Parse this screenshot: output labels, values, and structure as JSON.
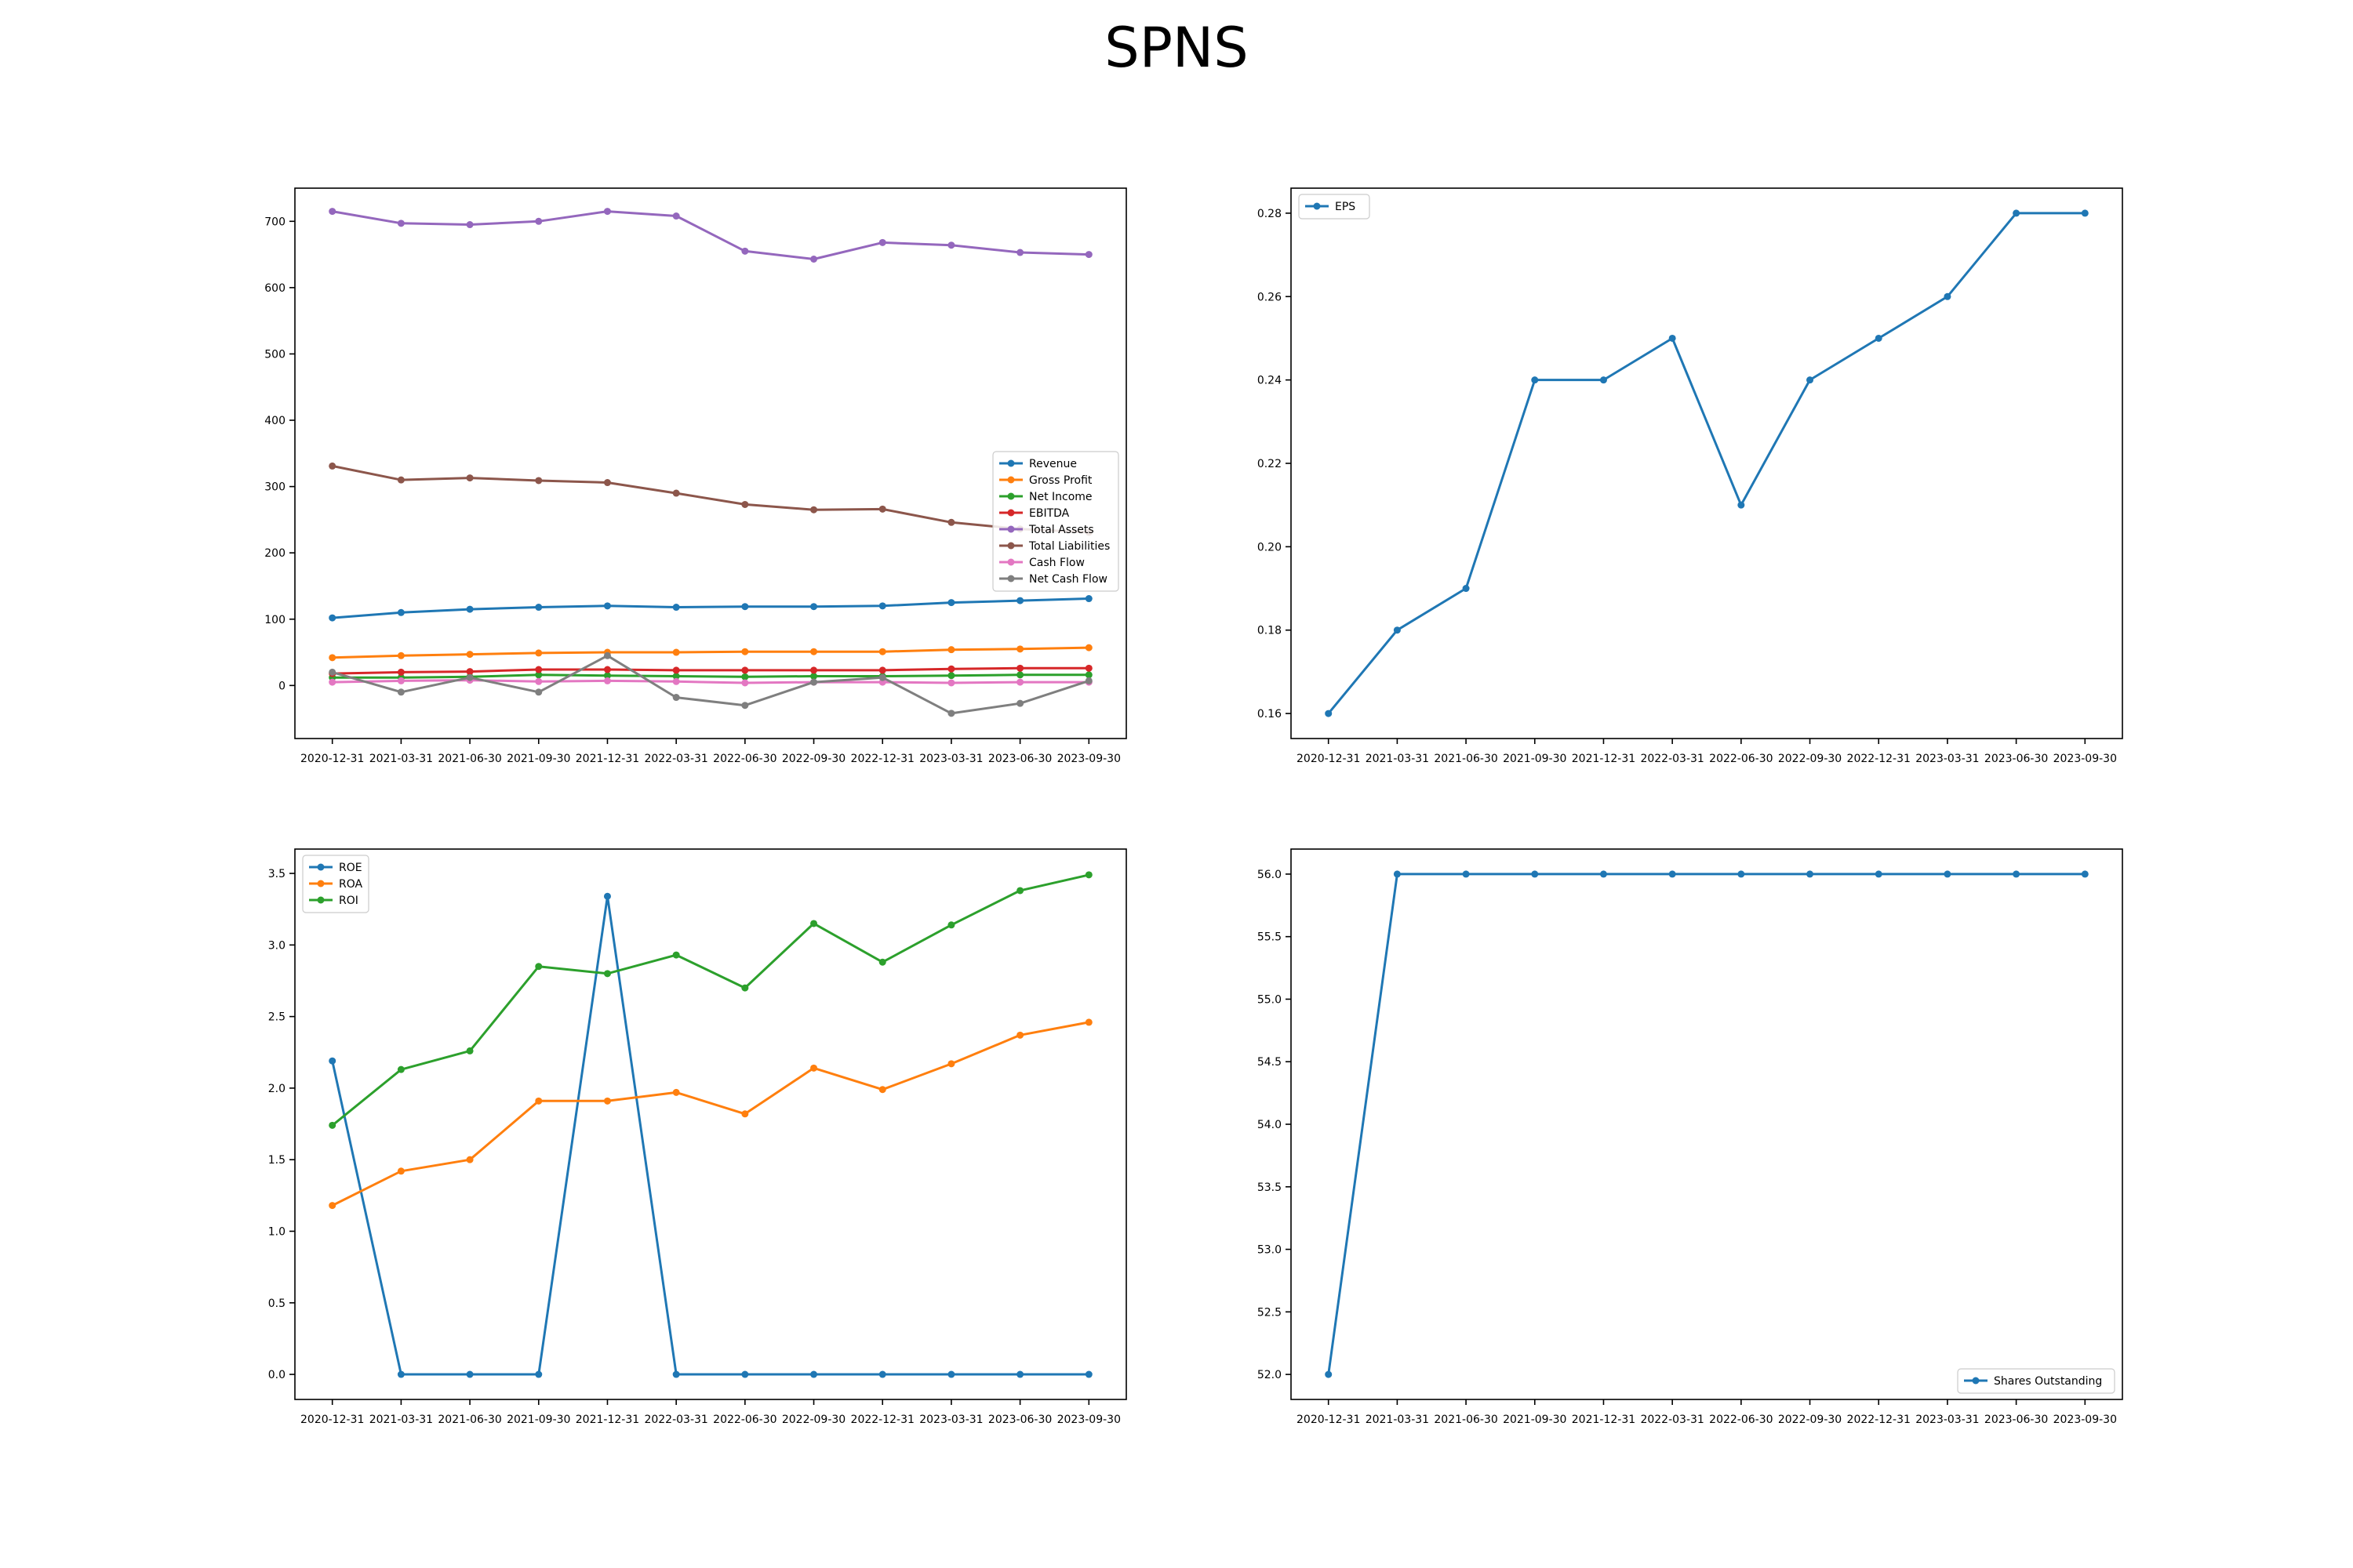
{
  "figure": {
    "title": "SPNS"
  },
  "chart_data": [
    {
      "type": "line",
      "x": [
        "2020-12-31",
        "2021-03-31",
        "2021-06-30",
        "2021-09-30",
        "2021-12-31",
        "2022-03-31",
        "2022-06-30",
        "2022-09-30",
        "2022-12-31",
        "2023-03-31",
        "2023-06-30",
        "2023-09-30"
      ],
      "ylim": [
        -80,
        750
      ],
      "yticks": [
        0,
        100,
        200,
        300,
        400,
        500,
        600,
        700
      ],
      "ytick_labels": [
        "0",
        "100",
        "200",
        "300",
        "400",
        "500",
        "600",
        "700"
      ],
      "legend": "center-right",
      "grid": false,
      "series": [
        {
          "name": "Revenue",
          "color": "#1f77b4",
          "values": [
            102,
            110,
            115,
            118,
            120,
            118,
            119,
            119,
            120,
            125,
            128,
            131
          ]
        },
        {
          "name": "Gross Profit",
          "color": "#ff7f0e",
          "values": [
            42,
            45,
            47,
            49,
            50,
            50,
            51,
            51,
            51,
            54,
            55,
            57
          ]
        },
        {
          "name": "Net Income",
          "color": "#2ca02c",
          "values": [
            12,
            12,
            13,
            16,
            15,
            14,
            13,
            14,
            14,
            15,
            16,
            16
          ]
        },
        {
          "name": "EBITDA",
          "color": "#d62728",
          "values": [
            18,
            20,
            21,
            24,
            24,
            23,
            23,
            23,
            23,
            25,
            26,
            26
          ]
        },
        {
          "name": "Total Assets",
          "color": "#9467bd",
          "values": [
            715,
            697,
            695,
            700,
            715,
            708,
            655,
            643,
            668,
            664,
            653,
            650
          ]
        },
        {
          "name": "Total Liabilities",
          "color": "#8c564b",
          "values": [
            331,
            310,
            313,
            309,
            306,
            290,
            273,
            265,
            266,
            246,
            236,
            231
          ]
        },
        {
          "name": "Cash Flow",
          "color": "#e377c2",
          "values": [
            5,
            7,
            8,
            6,
            7,
            6,
            4,
            5,
            5,
            4,
            5,
            5
          ]
        },
        {
          "name": "Net Cash Flow",
          "color": "#7f7f7f",
          "values": [
            20,
            -10,
            12,
            -10,
            45,
            -18,
            -30,
            5,
            12,
            -42,
            -27,
            7
          ]
        }
      ]
    },
    {
      "type": "line",
      "x": [
        "2020-12-31",
        "2021-03-31",
        "2021-06-30",
        "2021-09-30",
        "2021-12-31",
        "2022-03-31",
        "2022-06-30",
        "2022-09-30",
        "2022-12-31",
        "2023-03-31",
        "2023-06-30",
        "2023-09-30"
      ],
      "ylim": [
        0.154,
        0.286
      ],
      "yticks": [
        0.16,
        0.18,
        0.2,
        0.22,
        0.24,
        0.26,
        0.28
      ],
      "ytick_labels": [
        "0.16",
        "0.18",
        "0.20",
        "0.22",
        "0.24",
        "0.26",
        "0.28"
      ],
      "legend": "top-left",
      "grid": false,
      "series": [
        {
          "name": "EPS",
          "color": "#1f77b4",
          "values": [
            0.16,
            0.18,
            0.19,
            0.24,
            0.24,
            0.25,
            0.21,
            0.24,
            0.25,
            0.26,
            0.28,
            0.28
          ]
        }
      ]
    },
    {
      "type": "line",
      "x": [
        "2020-12-31",
        "2021-03-31",
        "2021-06-30",
        "2021-09-30",
        "2021-12-31",
        "2022-03-31",
        "2022-06-30",
        "2022-09-30",
        "2022-12-31",
        "2023-03-31",
        "2023-06-30",
        "2023-09-30"
      ],
      "ylim": [
        -0.175,
        3.67
      ],
      "yticks": [
        0.0,
        0.5,
        1.0,
        1.5,
        2.0,
        2.5,
        3.0,
        3.5
      ],
      "ytick_labels": [
        "0.0",
        "0.5",
        "1.0",
        "1.5",
        "2.0",
        "2.5",
        "3.0",
        "3.5"
      ],
      "legend": "top-left",
      "grid": false,
      "series": [
        {
          "name": "ROE",
          "color": "#1f77b4",
          "values": [
            2.19,
            0,
            0,
            0,
            3.34,
            0,
            0,
            0,
            0,
            0,
            0,
            0
          ]
        },
        {
          "name": "ROA",
          "color": "#ff7f0e",
          "values": [
            1.18,
            1.42,
            1.5,
            1.91,
            1.91,
            1.97,
            1.82,
            2.14,
            1.99,
            2.17,
            2.37,
            2.46
          ]
        },
        {
          "name": "ROI",
          "color": "#2ca02c",
          "values": [
            1.74,
            2.13,
            2.26,
            2.85,
            2.8,
            2.93,
            2.7,
            3.15,
            2.88,
            3.14,
            3.38,
            3.49
          ]
        }
      ]
    },
    {
      "type": "line",
      "x": [
        "2020-12-31",
        "2021-03-31",
        "2021-06-30",
        "2021-09-30",
        "2021-12-31",
        "2022-03-31",
        "2022-06-30",
        "2022-09-30",
        "2022-12-31",
        "2023-03-31",
        "2023-06-30",
        "2023-09-30"
      ],
      "ylim": [
        51.8,
        56.2
      ],
      "yticks": [
        52.0,
        52.5,
        53.0,
        53.5,
        54.0,
        54.5,
        55.0,
        55.5,
        56.0
      ],
      "ytick_labels": [
        "52.0",
        "52.5",
        "53.0",
        "53.5",
        "54.0",
        "54.5",
        "55.0",
        "55.5",
        "56.0"
      ],
      "legend": "bottom-right",
      "grid": false,
      "series": [
        {
          "name": "Shares Outstanding",
          "color": "#1f77b4",
          "values": [
            52,
            56,
            56,
            56,
            56,
            56,
            56,
            56,
            56,
            56,
            56,
            56
          ]
        }
      ]
    }
  ]
}
